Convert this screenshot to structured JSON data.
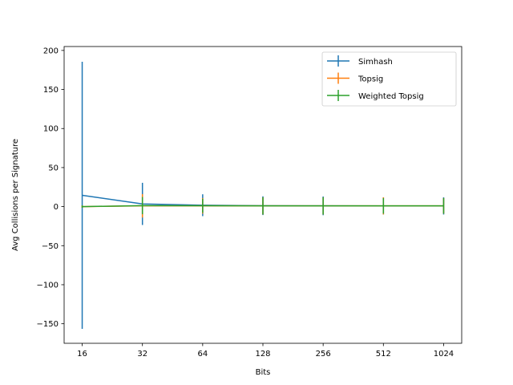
{
  "chart_data": {
    "type": "line",
    "title": "",
    "xlabel": "Bits",
    "ylabel": "Avg Collisions per Signature",
    "x_scale": "log2",
    "x": [
      16,
      32,
      64,
      128,
      256,
      512,
      1024
    ],
    "x_tick_labels": [
      "16",
      "32",
      "64",
      "128",
      "256",
      "512",
      "1024"
    ],
    "ylim": [
      -175,
      205
    ],
    "y_ticks": [
      -150,
      -100,
      -50,
      0,
      50,
      100,
      150,
      200
    ],
    "y_tick_labels": [
      "−150",
      "−100",
      "−50",
      "0",
      "50",
      "100",
      "150",
      "200"
    ],
    "grid": false,
    "legend_position": "top-right",
    "error_bars": true,
    "series": [
      {
        "name": "Simhash",
        "color": "#1f77b4",
        "values": [
          14.5,
          3.5,
          1.8,
          1.2,
          1.0,
          0.9,
          0.9
        ],
        "errors": [
          171,
          27,
          14,
          12,
          12,
          11,
          11
        ]
      },
      {
        "name": "Topsig",
        "color": "#ff7f0e",
        "values": [
          0.0,
          1.0,
          1.0,
          1.0,
          1.0,
          1.0,
          1.0
        ],
        "errors": [
          1.5,
          15,
          10,
          11,
          11,
          11,
          10
        ]
      },
      {
        "name": "Weighted Topsig",
        "color": "#2ca02c",
        "values": [
          0.0,
          1.3,
          1.1,
          1.0,
          1.0,
          1.0,
          1.0
        ],
        "errors": [
          1.5,
          11,
          9,
          11,
          11,
          10,
          10
        ]
      }
    ]
  }
}
